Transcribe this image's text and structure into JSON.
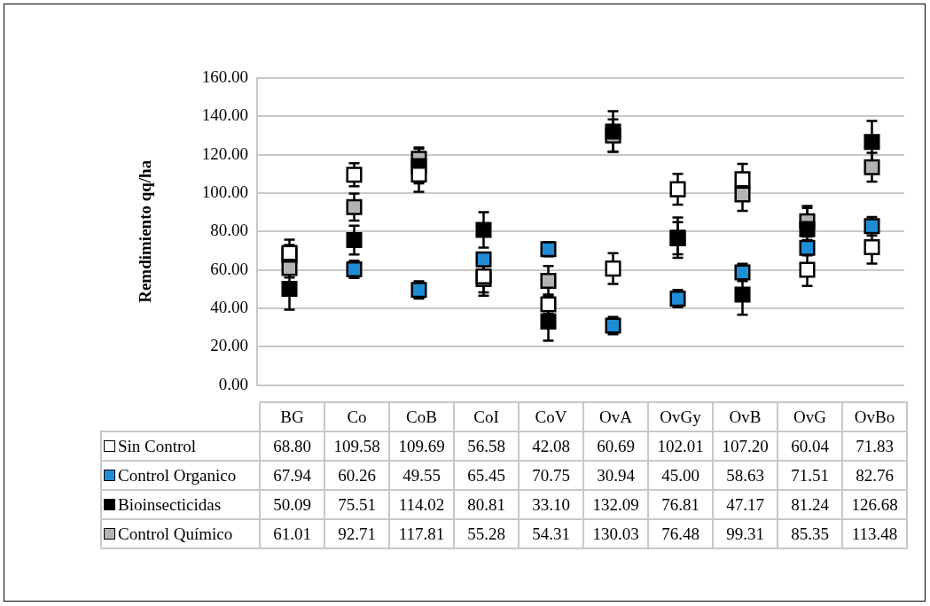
{
  "chart_data": {
    "type": "scatter",
    "ylabel": "Remdimiento qq/ha",
    "categories": [
      "BG",
      "Co",
      "CoB",
      "CoI",
      "CoV",
      "OvA",
      "OvGy",
      "OvB",
      "OvG",
      "OvBo"
    ],
    "ylim": [
      0,
      160
    ],
    "yticks": [
      {
        "value": 0,
        "label": "0.00"
      },
      {
        "value": 20,
        "label": "20.00"
      },
      {
        "value": 40,
        "label": "40.00"
      },
      {
        "value": 60,
        "label": "60.00"
      },
      {
        "value": 80,
        "label": "80.00"
      },
      {
        "value": 100,
        "label": "100.00"
      },
      {
        "value": 120,
        "label": "120.00"
      },
      {
        "value": 140,
        "label": "140.00"
      },
      {
        "value": 160,
        "label": "160.00"
      }
    ],
    "grid": "y",
    "legend": "bottom",
    "marker": "square",
    "series": [
      {
        "name": "Sin Control",
        "color": "#ffffff",
        "values": [
          68.8,
          109.58,
          109.69,
          56.58,
          42.08,
          60.69,
          102.01,
          107.2,
          60.04,
          71.83
        ],
        "value_labels": [
          "68.80",
          "109.58",
          "109.69",
          "56.58",
          "42.08",
          "60.69",
          "102.01",
          "107.20",
          "60.04",
          "71.83"
        ],
        "errors": [
          7,
          6,
          9,
          10,
          5,
          8,
          8,
          8,
          8.4,
          8.5
        ]
      },
      {
        "name": "Control Organico",
        "color": "#1f8dd6",
        "values": [
          67.94,
          60.26,
          49.55,
          65.45,
          70.75,
          30.94,
          45,
          58.63,
          71.51,
          82.76
        ],
        "value_labels": [
          "67.94",
          "60.26",
          "49.55",
          "65.45",
          "70.75",
          "30.94",
          "45.00",
          "58.63",
          "71.51",
          "82.76"
        ],
        "errors": [
          5,
          4.5,
          4.5,
          3.5,
          3.7,
          4.5,
          4.5,
          4.5,
          4,
          4.8
        ]
      },
      {
        "name": "Bioinsecticidas",
        "color": "#000000",
        "values": [
          50.09,
          75.51,
          114.02,
          80.81,
          33.1,
          132.09,
          76.81,
          47.17,
          81.24,
          126.68
        ],
        "value_labels": [
          "50.09",
          "75.51",
          "114.02",
          "80.81",
          "33.10",
          "132.09",
          "76.81",
          "47.17",
          "81.24",
          "126.68"
        ],
        "errors": [
          10.8,
          7.5,
          9,
          9.2,
          10,
          10.6,
          10.5,
          10.5,
          11,
          10.9
        ]
      },
      {
        "name": "Control Químico",
        "color": "#b3b3b3",
        "values": [
          61.01,
          92.71,
          117.81,
          55.28,
          54.31,
          130.03,
          76.48,
          99.31,
          85.35,
          113.48
        ],
        "value_labels": [
          "61.01",
          "92.71",
          "117.81",
          "55.28",
          "54.31",
          "130.03",
          "76.48",
          "99.31",
          "85.35",
          "113.48"
        ],
        "errors": [
          5,
          7,
          6,
          7,
          7.7,
          8.4,
          8.4,
          8.6,
          8,
          7.5
        ]
      }
    ]
  }
}
